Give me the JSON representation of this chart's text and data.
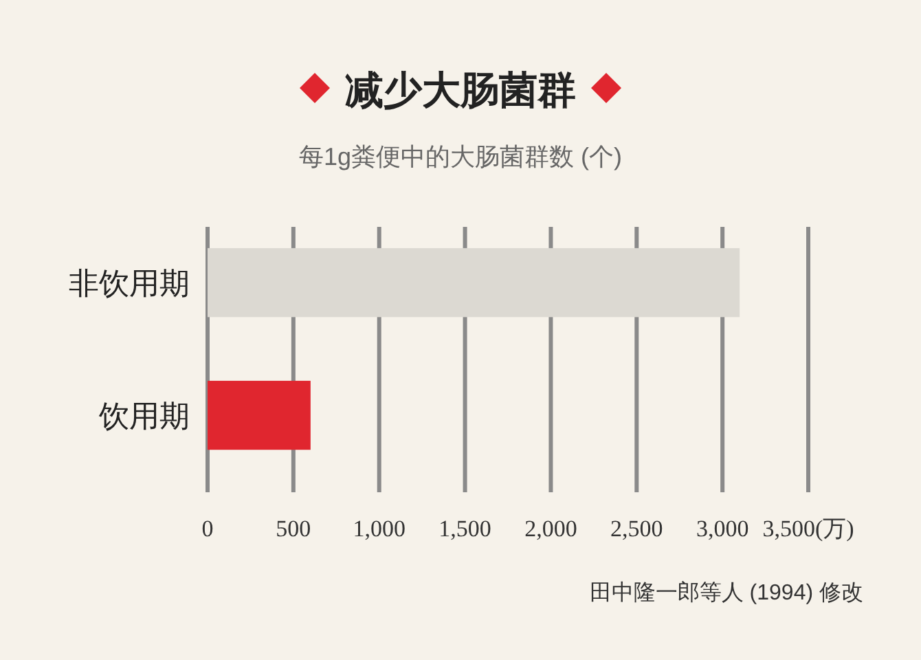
{
  "chart_data": {
    "type": "bar",
    "orientation": "horizontal",
    "title": "减少大肠菌群",
    "subtitle": "每1g粪便中的大肠菌群数 (个)",
    "categories": [
      "非饮用期",
      "饮用期"
    ],
    "values": [
      3100,
      600
    ],
    "colors": [
      "#dcd9d2",
      "#e0262f"
    ],
    "xlim": [
      0,
      3500
    ],
    "xticks": [
      0,
      500,
      {
        "value": 1000,
        "label": "1,000"
      },
      {
        "value": 1500,
        "label": "1,500"
      },
      {
        "value": 2000,
        "label": "2,000"
      },
      {
        "value": 2500,
        "label": "2,500"
      },
      {
        "value": 3000,
        "label": "3,000"
      },
      {
        "value": 3500,
        "label": "3,500(万)"
      }
    ],
    "grid": "x",
    "annotations": [
      "田中隆一郎等人 (1994) 修改"
    ]
  }
}
